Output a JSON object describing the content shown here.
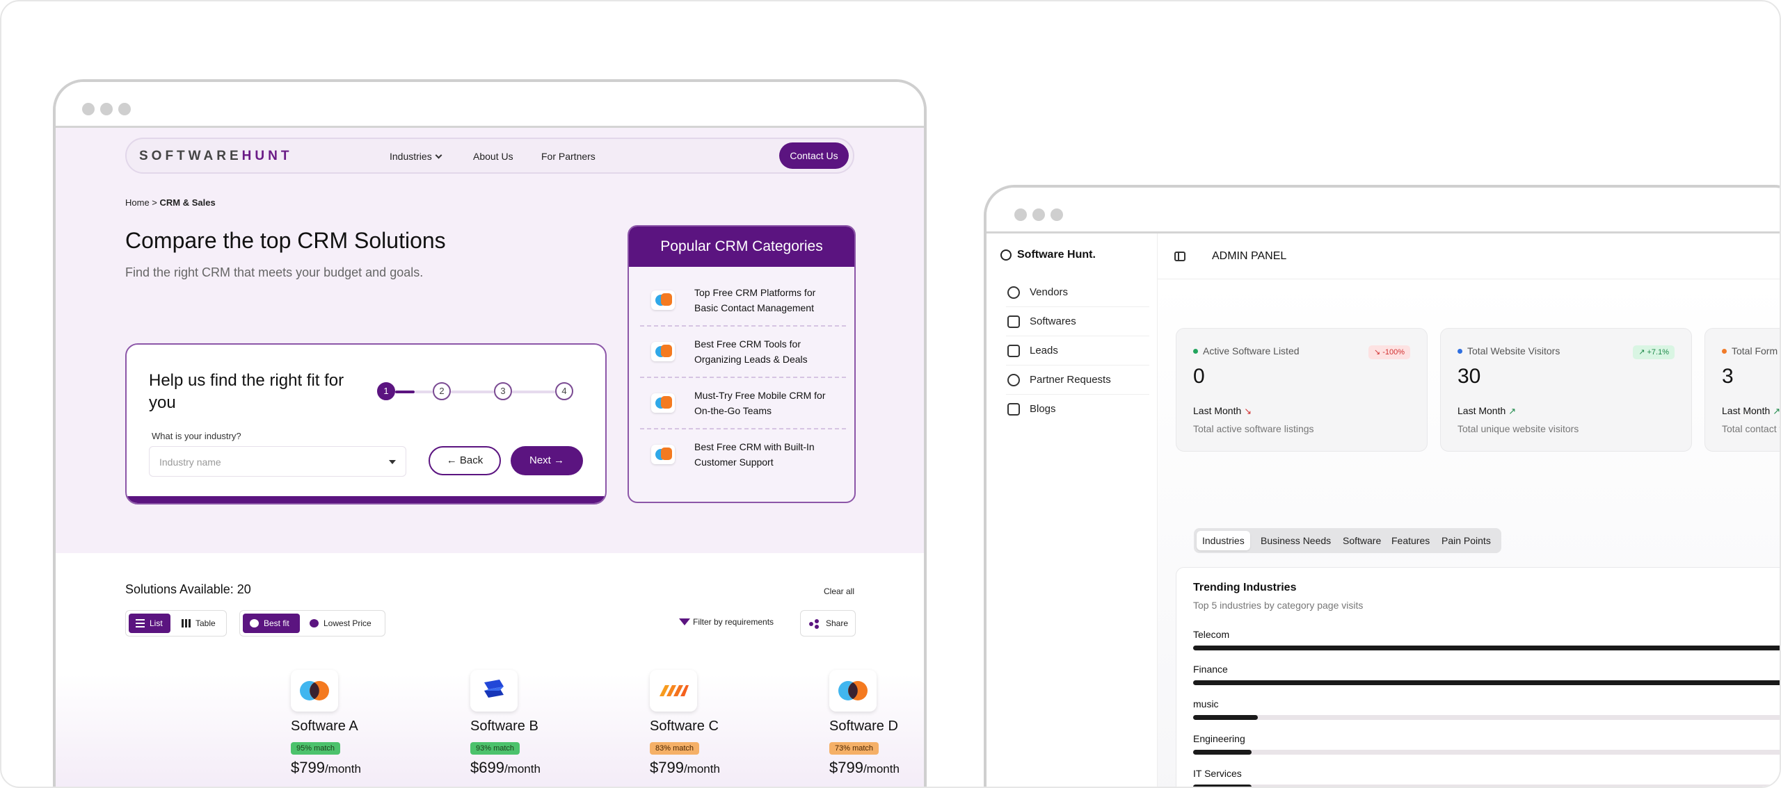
{
  "site": {
    "logo_a": "SOFTWARE",
    "logo_b": "HUNT",
    "nav": {
      "industries": "Industries",
      "about": "About Us",
      "partners": "For Partners",
      "contact": "Contact Us"
    },
    "breadcrumb": {
      "home": "Home",
      "sep": " > ",
      "current": "CRM & Sales"
    },
    "hero": {
      "title": "Compare the top CRM Solutions",
      "subtitle": "Find the right CRM that meets your budget and goals."
    },
    "wizard": {
      "title": "Help us find the right fit for you",
      "steps": [
        "1",
        "2",
        "3",
        "4"
      ],
      "current_step": 1,
      "question": "What is your industry?",
      "placeholder": "Industry name",
      "back": "Back",
      "next": "Next"
    },
    "popular": {
      "title": "Popular CRM Categories",
      "items": [
        "Top Free CRM Platforms for Basic Contact Management",
        "Best Free CRM Tools for Organizing Leads & Deals",
        "Must-Try Free Mobile CRM for On-the-Go Teams",
        "Best Free CRM with Built-In Customer Support"
      ]
    },
    "results": {
      "count_label": "Solutions Available: 20",
      "clear": "Clear all",
      "view_list": "List",
      "view_table": "Table",
      "sort_best": "Best fit",
      "sort_price": "Lowest Price",
      "filter": "Filter by requirements",
      "share": "Share",
      "cards": [
        {
          "name": "Software A",
          "match": "95% match",
          "price": "$799",
          "period": "/month",
          "badge": "green"
        },
        {
          "name": "Software B",
          "match": "93% match",
          "price": "$699",
          "period": "/month",
          "badge": "green"
        },
        {
          "name": "Software C",
          "match": "83% match",
          "price": "$799",
          "period": "/month",
          "badge": "orange"
        },
        {
          "name": "Software D",
          "match": "73% match",
          "price": "$799",
          "period": "/month",
          "badge": "orange"
        }
      ]
    }
  },
  "admin": {
    "brand": "Software Hunt.",
    "panel_title": "ADMIN PANEL",
    "sidebar": [
      "Vendors",
      "Softwares",
      "Leads",
      "Partner Requests",
      "Blogs"
    ],
    "stats": [
      {
        "label": "Active Software Listed",
        "change": "-100%",
        "value": "0",
        "period": "Last Month",
        "desc": "Total active software listings",
        "trend": "down",
        "dot": "#22a45d"
      },
      {
        "label": "Total Website Visitors",
        "change": "+7.1%",
        "value": "30",
        "period": "Last Month",
        "desc": "Total unique website visitors",
        "trend": "up",
        "dot": "#2f6fe0"
      },
      {
        "label": "Total Form F",
        "change": "",
        "value": "3",
        "period": "Last Month",
        "desc": "Total contact f",
        "trend": "up",
        "dot": "#f07b2a"
      }
    ],
    "tabs": [
      "Industries",
      "Business Needs",
      "Software",
      "Features",
      "Pain Points"
    ],
    "trending": {
      "title": "Trending Industries",
      "subtitle": "Top 5 industries by category page visits",
      "items": [
        {
          "name": "Telecom",
          "share": 1.0
        },
        {
          "name": "Finance",
          "share": 1.0
        },
        {
          "name": "music",
          "share": 0.1
        },
        {
          "name": "Engineering",
          "share": 0.09
        },
        {
          "name": "IT Services",
          "share": 0.09
        }
      ]
    }
  },
  "colors": {
    "brand_purple": "#5b1480",
    "lavender_bg": "#f6eff9"
  }
}
